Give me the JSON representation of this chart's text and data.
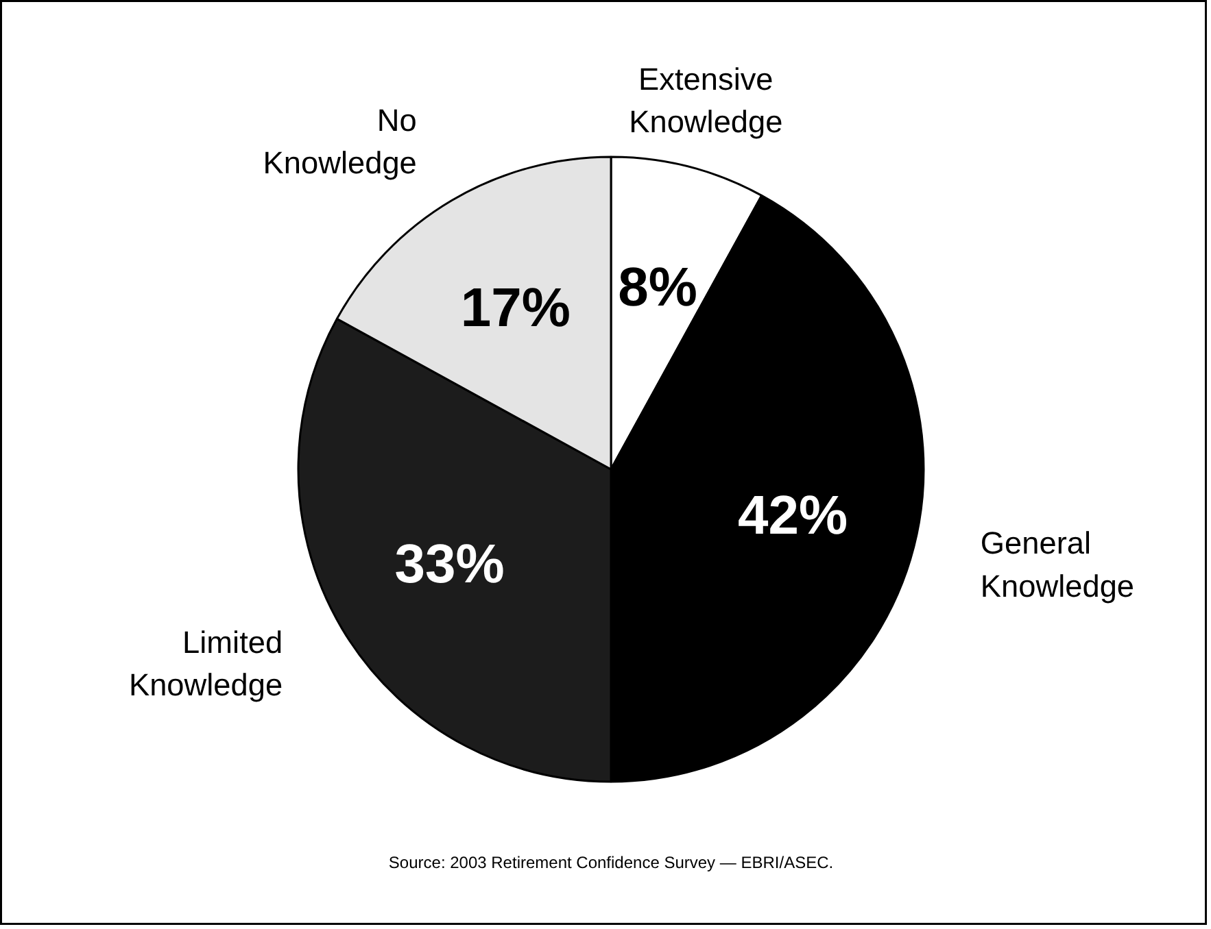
{
  "chart_data": {
    "type": "pie",
    "categories": [
      "Extensive Knowledge",
      "General Knowledge",
      "Limited Knowledge",
      "No Knowledge"
    ],
    "values": [
      8,
      42,
      33,
      17
    ],
    "colors": [
      "#ffffff",
      "#000000",
      "#1c1c1c",
      "#e4e4e4"
    ],
    "value_labels": [
      "8%",
      "42%",
      "33%",
      "17%"
    ],
    "annotations": [
      "Source: 2003 Retirement Confidence Survey — EBRI/ASEC."
    ]
  }
}
